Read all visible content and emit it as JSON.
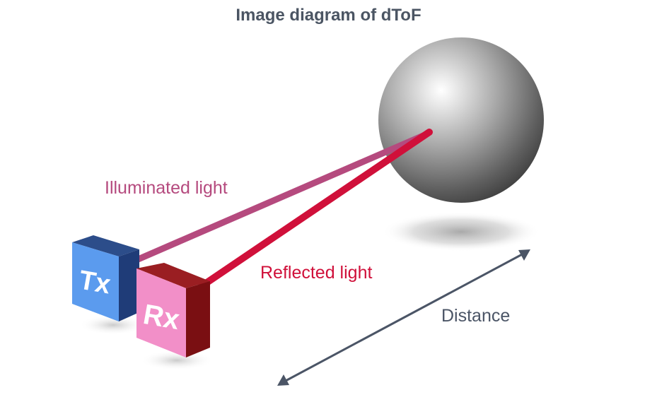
{
  "title": "Image diagram of dToF",
  "labels": {
    "illuminated": "Illuminated light",
    "reflected": "Reflected light",
    "distance": "Distance",
    "tx": "Tx",
    "rx": "Rx"
  },
  "colors": {
    "illuminated": "#b54a7e",
    "reflected": "#d0103a",
    "distance": "#4b5566",
    "tx_face": "#5b9bee",
    "tx_side": "#1f3c78",
    "rx_face": "#f28fc8",
    "rx_side": "#7a0f12"
  }
}
